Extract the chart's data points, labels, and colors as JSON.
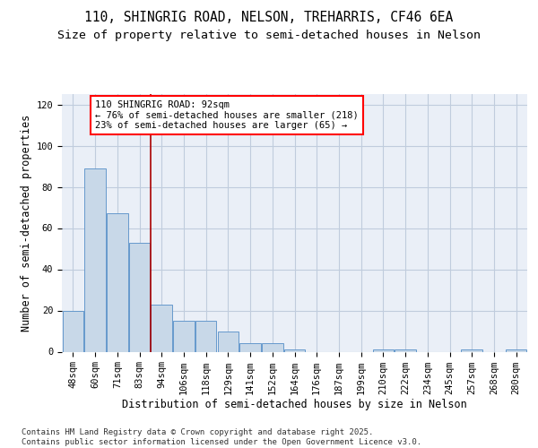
{
  "title_line1": "110, SHINGRIG ROAD, NELSON, TREHARRIS, CF46 6EA",
  "title_line2": "Size of property relative to semi-detached houses in Nelson",
  "xlabel": "Distribution of semi-detached houses by size in Nelson",
  "ylabel": "Number of semi-detached properties",
  "categories": [
    "48sqm",
    "60sqm",
    "71sqm",
    "83sqm",
    "94sqm",
    "106sqm",
    "118sqm",
    "129sqm",
    "141sqm",
    "152sqm",
    "164sqm",
    "176sqm",
    "187sqm",
    "199sqm",
    "210sqm",
    "222sqm",
    "234sqm",
    "245sqm",
    "257sqm",
    "268sqm",
    "280sqm"
  ],
  "values": [
    20,
    89,
    67,
    53,
    23,
    15,
    15,
    10,
    4,
    4,
    1,
    0,
    0,
    0,
    1,
    1,
    0,
    0,
    1,
    0,
    1
  ],
  "bar_color": "#c8d8e8",
  "bar_edge_color": "#6699cc",
  "vline_x_idx": 3,
  "vline_color": "#aa0000",
  "annotation_text_line1": "110 SHINGRIG ROAD: 92sqm",
  "annotation_text_line2": "← 76% of semi-detached houses are smaller (218)",
  "annotation_text_line3": "23% of semi-detached houses are larger (65) →",
  "ylim": [
    0,
    125
  ],
  "yticks": [
    0,
    20,
    40,
    60,
    80,
    100,
    120
  ],
  "grid_color": "#c0ccdd",
  "background_color": "#eaeff7",
  "footer_text": "Contains HM Land Registry data © Crown copyright and database right 2025.\nContains public sector information licensed under the Open Government Licence v3.0.",
  "title_fontsize": 10.5,
  "subtitle_fontsize": 9.5,
  "axis_label_fontsize": 8.5,
  "tick_fontsize": 7.5,
  "annotation_fontsize": 7.5,
  "footer_fontsize": 6.5
}
